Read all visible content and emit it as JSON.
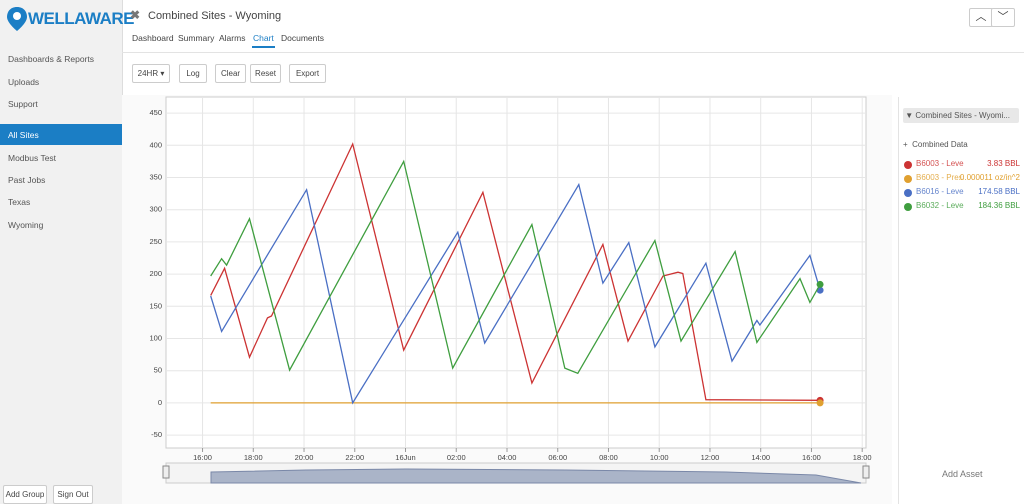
{
  "sidebar": {
    "logo": "WELLAWARE",
    "menu": [
      "Dashboards & Reports",
      "Uploads",
      "Support"
    ],
    "sites": [
      "All Sites",
      "Modbus Test",
      "Past Jobs",
      "Texas",
      "Wyoming"
    ],
    "buttons": [
      "Add Group",
      "Sign Out"
    ]
  },
  "header": {
    "title": "Combined Sites - Wyoming",
    "tabs": [
      "Dashboard",
      "Summary",
      "Alarms",
      "Chart",
      "Documents"
    ]
  },
  "toolbar": [
    "24HR",
    "Log",
    "Clear",
    "Reset",
    "Export"
  ],
  "panel": {
    "dropdown": "Combined Sites - Wyomi...",
    "group": "Combined Data",
    "legend": [
      {
        "name": "B6003 - Level",
        "value": "3.83 BBL"
      },
      {
        "name": "B6003 - Press",
        "value": "0.000011 oz/in^2"
      },
      {
        "name": "B6016 - Level",
        "value": "174.58 BBL"
      },
      {
        "name": "B6032 - Level",
        "value": "184.36 BBL"
      }
    ],
    "add_asset": "Add Asset"
  },
  "chart_data": {
    "type": "line",
    "grid": true,
    "xlim": [
      14.56,
      42.15
    ],
    "ylim": [
      -70,
      475
    ],
    "xticks": [
      {
        "value": 16,
        "label": "16:00"
      },
      {
        "value": 18,
        "label": "18:00"
      },
      {
        "value": 20,
        "label": "20:00"
      },
      {
        "value": 22,
        "label": "22:00"
      },
      {
        "value": 24,
        "label": "16Jun"
      },
      {
        "value": 26,
        "label": "02:00"
      },
      {
        "value": 28,
        "label": "04:00"
      },
      {
        "value": 30,
        "label": "06:00"
      },
      {
        "value": 32,
        "label": "08:00"
      },
      {
        "value": 34,
        "label": "10:00"
      },
      {
        "value": 36,
        "label": "12:00"
      },
      {
        "value": 38,
        "label": "14:00"
      },
      {
        "value": 40,
        "label": "16:00"
      },
      {
        "value": 42,
        "label": "18:00"
      }
    ],
    "yticks": [
      -50,
      0,
      50,
      100,
      150,
      200,
      250,
      300,
      350,
      400,
      450
    ],
    "series": [
      {
        "name": "B6003 - Level",
        "color": "#cc3333",
        "x": [
          16.32,
          16.87,
          17.85,
          18.56,
          18.72,
          21.92,
          23.93,
          27.05,
          28.98,
          31.78,
          32.77,
          34.15,
          34.74,
          34.93,
          35.84,
          40.34
        ],
        "values": [
          167,
          209,
          71,
          132,
          135,
          402,
          82,
          327,
          31,
          246,
          96,
          197,
          203,
          201,
          5,
          4
        ]
      },
      {
        "name": "B6003 - Press",
        "color": "#e0a030",
        "x": [
          16.32,
          40.34
        ],
        "values": [
          0,
          0
        ]
      },
      {
        "name": "B6016 - Level",
        "color": "#4a6fc4",
        "x": [
          16.32,
          16.75,
          20.1,
          21.92,
          26.06,
          27.12,
          30.83,
          31.78,
          32.8,
          33.83,
          35.84,
          36.87,
          37.85,
          37.97,
          39.94,
          40.34
        ],
        "values": [
          166,
          111,
          331,
          0,
          265,
          93,
          339,
          186,
          249,
          87,
          217,
          65,
          128,
          121,
          229,
          175
        ]
      },
      {
        "name": "B6032 - Level",
        "color": "#3f9e3f",
        "x": [
          16.32,
          16.75,
          16.95,
          17.85,
          19.43,
          23.93,
          25.86,
          28.98,
          30.28,
          30.79,
          33.83,
          34.86,
          36.99,
          37.85,
          39.55,
          39.94,
          40.34
        ],
        "values": [
          197,
          224,
          214,
          286,
          51,
          375,
          54,
          277,
          54,
          46,
          252,
          96,
          235,
          94,
          193,
          156,
          184
        ]
      }
    ]
  }
}
